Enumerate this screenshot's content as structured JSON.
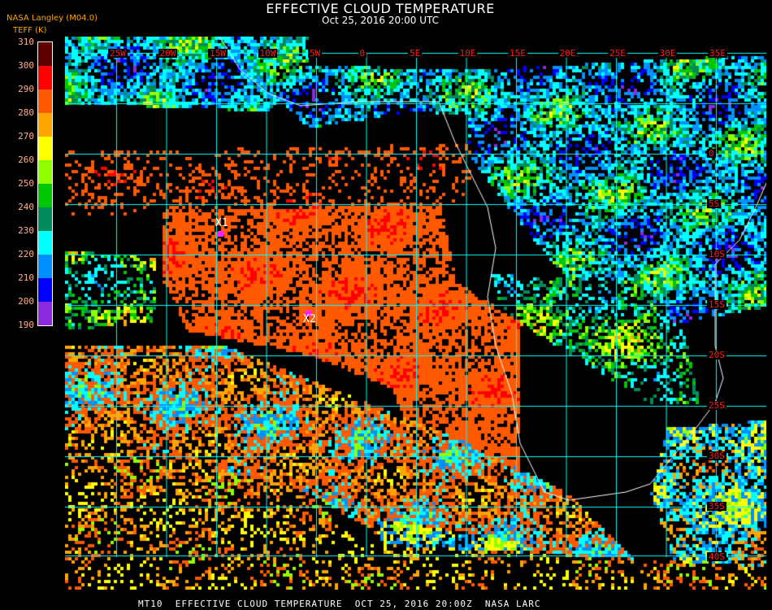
{
  "header": {
    "title": "EFFECTIVE CLOUD TEMPERATURE",
    "subtitle": "Oct 25, 2016 20:00 UTC",
    "provider": "NASA Langley (M04.0)"
  },
  "legend": {
    "units": "TEFF (K)",
    "ticks": [
      "190",
      "200",
      "210",
      "220",
      "230",
      "240",
      "250",
      "260",
      "270",
      "280",
      "290",
      "300",
      "310"
    ],
    "colors": [
      "#8a2be2",
      "#0000ff",
      "#0090ff",
      "#00ffff",
      "#008c5a",
      "#00c800",
      "#90ff00",
      "#ffff00",
      "#ffa500",
      "#ff5a00",
      "#ff0000",
      "#600000"
    ]
  },
  "map": {
    "longitude_labels": [
      "25W",
      "20W",
      "15W",
      "10W",
      "5W",
      "0",
      "5E",
      "10E",
      "15E",
      "20E",
      "25E",
      "30E",
      "35E"
    ],
    "latitude_labels": [
      "0",
      "5S",
      "10S",
      "15S",
      "20S",
      "25S",
      "30S",
      "35S",
      "40S"
    ],
    "grid_color": "#00ffff",
    "label_color": "#ff1a1a",
    "coastline_color": "#ffffff",
    "markers": [
      {
        "label": "X1",
        "color": "#ff22ff"
      },
      {
        "label": "X2",
        "color": "#ff22ff"
      }
    ]
  },
  "footer": "MT10  EFFECTIVE CLOUD TEMPERATURE  OCT 25, 2016 20:00Z  NASA LARC"
}
